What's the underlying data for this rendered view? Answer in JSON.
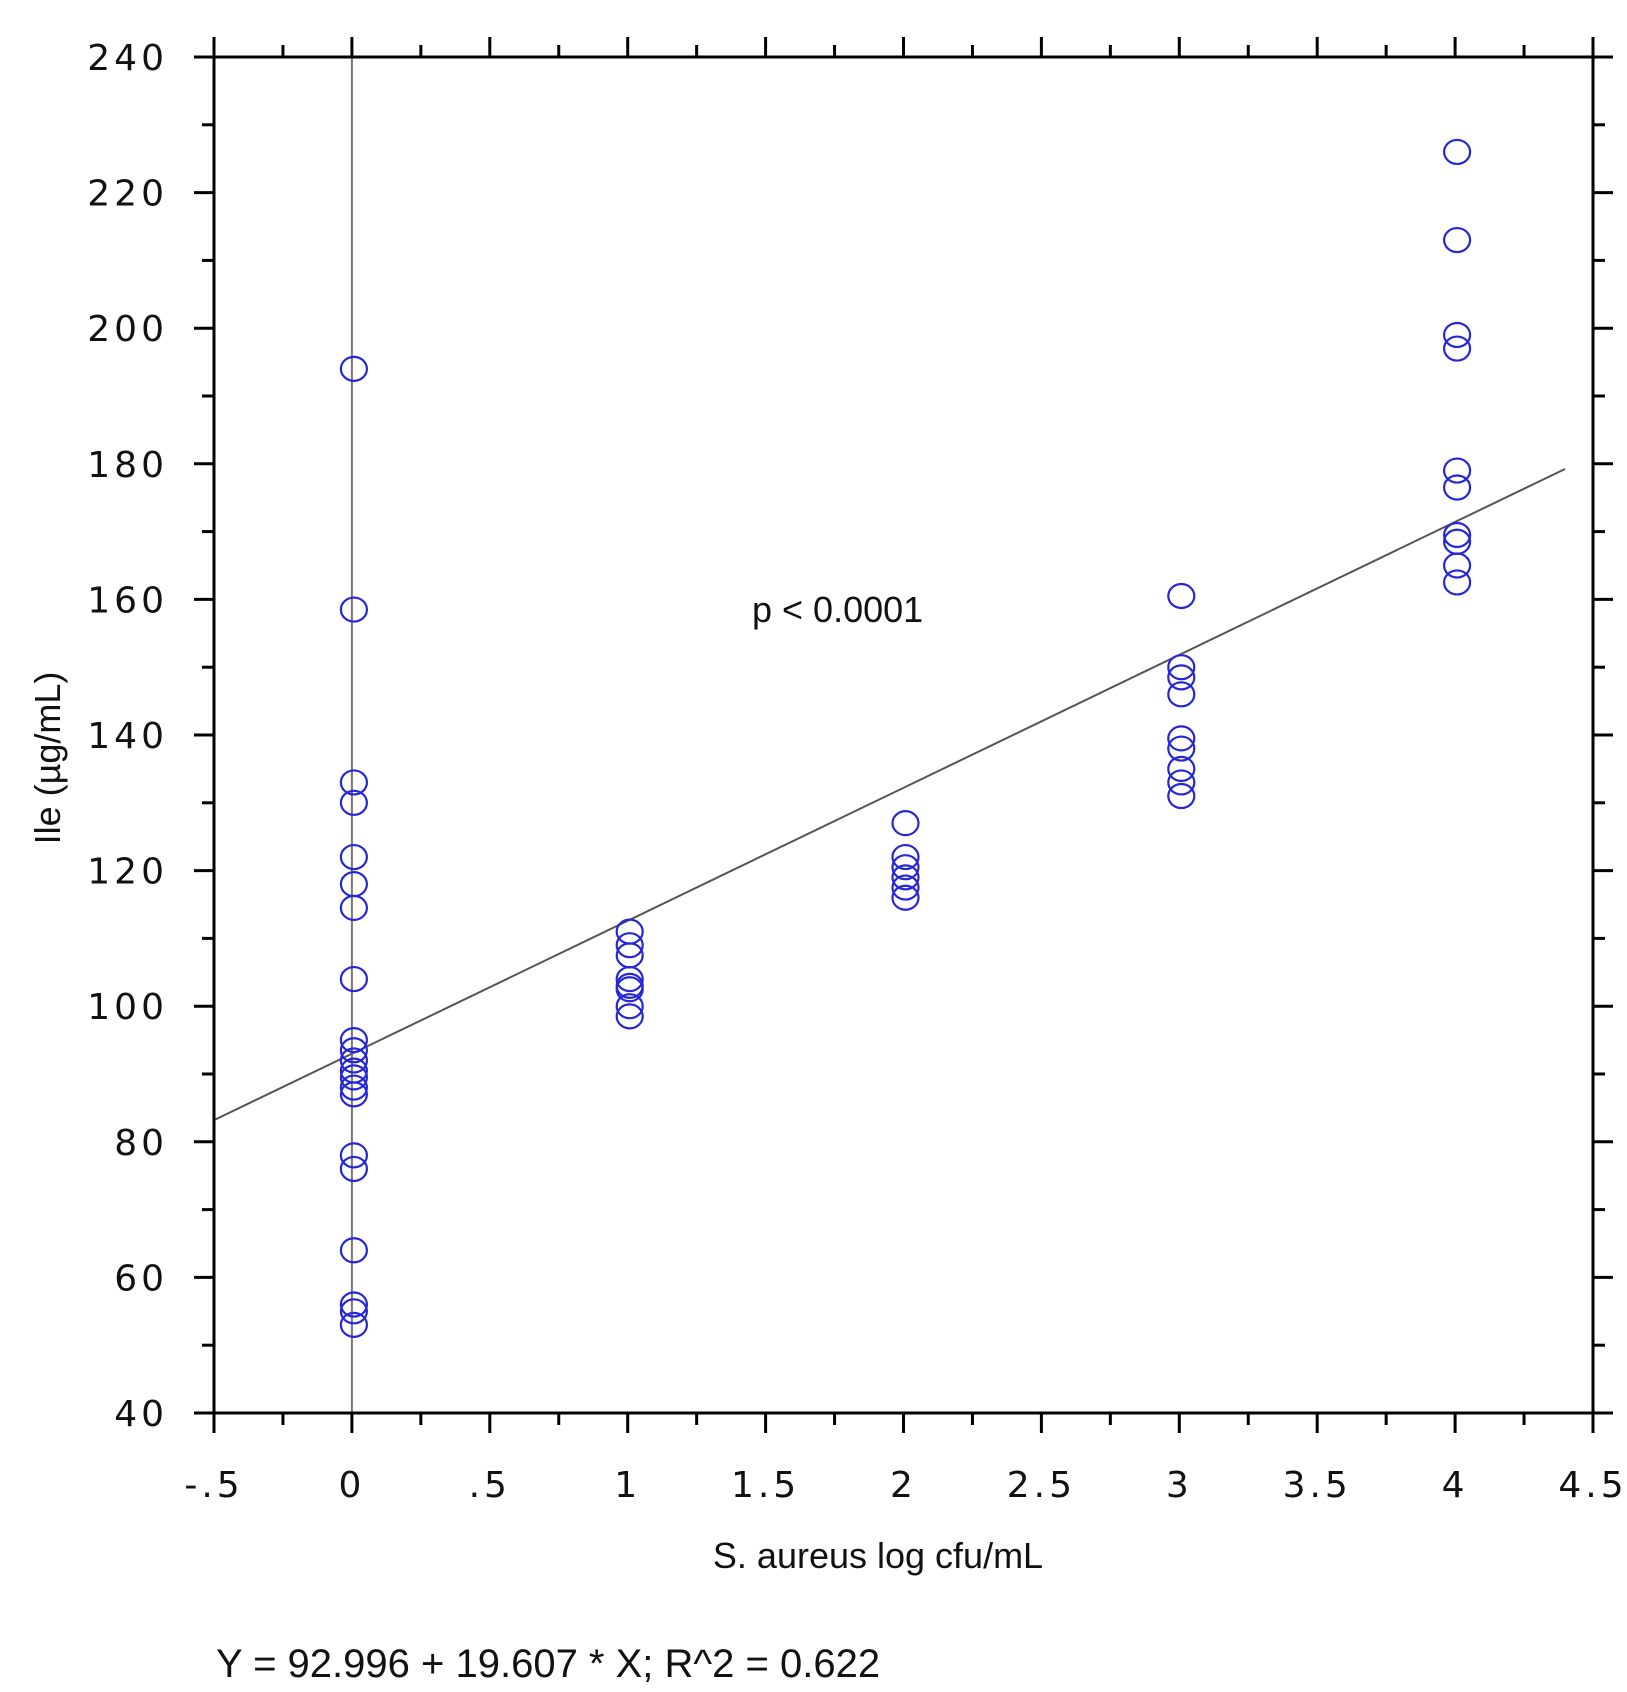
{
  "chart_data": {
    "type": "scatter",
    "xlabel": "S. aureus log cfu/mL",
    "ylabel": "Ile (µg/mL)",
    "xlim": [
      -0.5,
      4.5
    ],
    "ylim": [
      40,
      240
    ],
    "x_ticks": [
      -0.5,
      0,
      0.5,
      1,
      1.5,
      2,
      2.5,
      3,
      3.5,
      4,
      4.5
    ],
    "x_tick_labels": [
      "-.5",
      "0",
      ".5",
      "1",
      "1.5",
      "2",
      "2.5",
      "3",
      "3.5",
      "4",
      "4.5"
    ],
    "y_ticks": [
      40,
      60,
      80,
      100,
      120,
      140,
      160,
      180,
      200,
      220,
      240
    ],
    "y_tick_labels": [
      "40",
      "60",
      "80",
      "100",
      "120",
      "140",
      "160",
      "180",
      "200",
      "220",
      "240"
    ],
    "grid": false,
    "marker_color": "#2626d9",
    "line_color": "#555555",
    "annotation": "p < 0.0001",
    "equation": "Y = 92.996 + 19.607 * X; R^2 = 0.622",
    "regression": {
      "intercept": 92.996,
      "slope": 19.607
    },
    "reference_line_x": 0,
    "series": [
      {
        "points": [
          [
            0,
            194
          ],
          [
            0,
            158.5
          ],
          [
            0,
            133
          ],
          [
            0,
            130
          ],
          [
            0,
            122
          ],
          [
            0,
            118
          ],
          [
            0,
            114.5
          ],
          [
            0,
            104
          ],
          [
            0,
            95
          ],
          [
            0,
            93.5
          ],
          [
            0,
            92
          ],
          [
            0,
            90.5
          ],
          [
            0,
            89.5
          ],
          [
            0,
            88
          ],
          [
            0,
            87
          ],
          [
            0,
            78
          ],
          [
            0,
            76
          ],
          [
            0,
            64
          ],
          [
            0,
            56
          ],
          [
            0,
            55
          ],
          [
            0,
            53
          ],
          [
            1,
            111
          ],
          [
            1,
            109
          ],
          [
            1,
            107.5
          ],
          [
            1,
            104
          ],
          [
            1,
            103
          ],
          [
            1,
            102.5
          ],
          [
            1,
            100
          ],
          [
            1,
            98.5
          ],
          [
            2,
            127
          ],
          [
            2,
            122
          ],
          [
            2,
            120.5
          ],
          [
            2,
            119
          ],
          [
            2,
            117.5
          ],
          [
            2,
            116
          ],
          [
            3,
            160.5
          ],
          [
            3,
            150
          ],
          [
            3,
            148.5
          ],
          [
            3,
            146
          ],
          [
            3,
            139.5
          ],
          [
            3,
            138
          ],
          [
            3,
            135
          ],
          [
            3,
            133
          ],
          [
            3,
            131
          ],
          [
            4,
            226
          ],
          [
            4,
            213
          ],
          [
            4,
            199
          ],
          [
            4,
            197
          ],
          [
            4,
            179
          ],
          [
            4,
            176.5
          ],
          [
            4,
            169.5
          ],
          [
            4,
            168.5
          ],
          [
            4,
            165
          ],
          [
            4,
            162.5
          ]
        ]
      }
    ]
  }
}
